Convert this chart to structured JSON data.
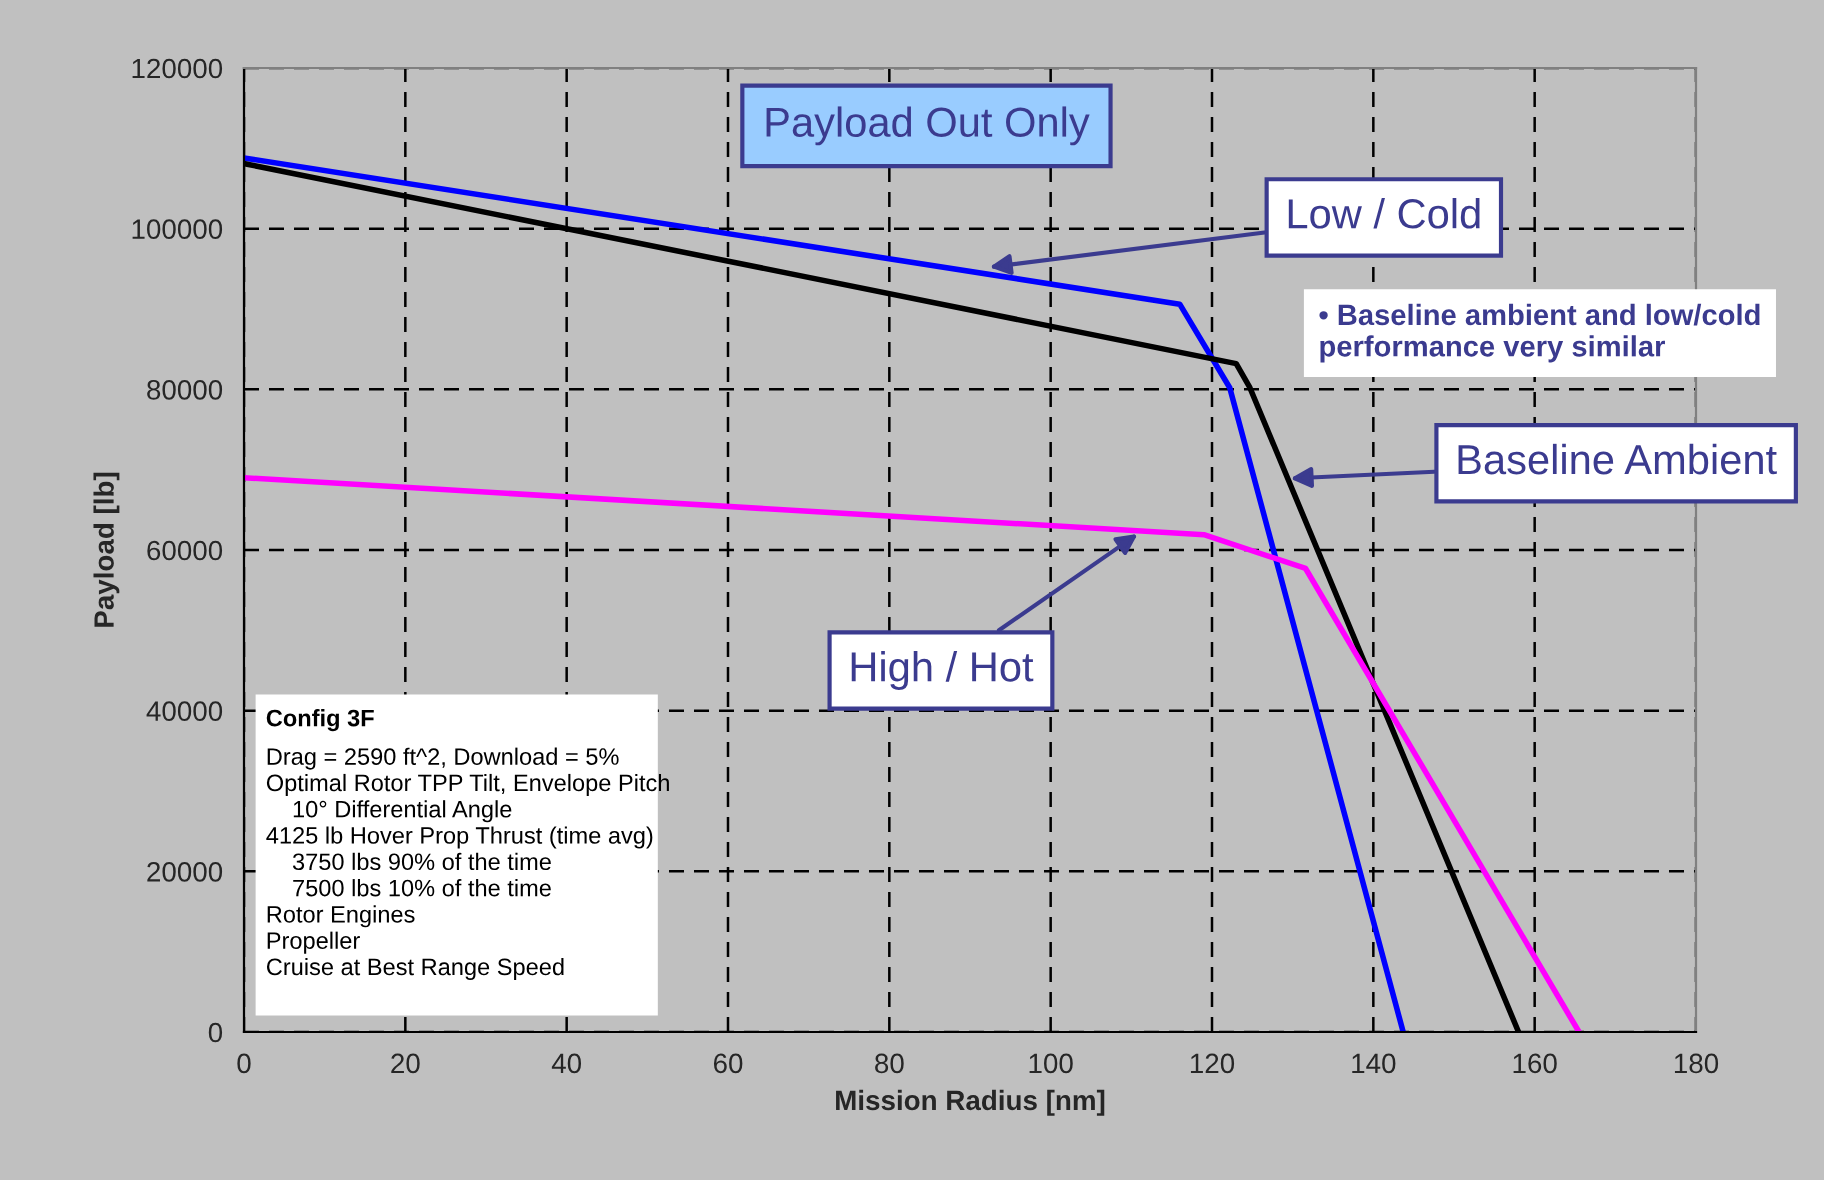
{
  "chart_data": {
    "type": "line",
    "xlabel": "Mission Radius [nm]",
    "ylabel": "Payload [lb]",
    "series": [
      {
        "color": "#0000ff",
        "x": [
          0,
          116,
          122.2,
          143.7
        ],
        "values": [
          108800,
          90600,
          80200,
          0
        ]
      },
      {
        "color": "#000000",
        "x": [
          0,
          123,
          124.7,
          158
        ],
        "values": [
          108100,
          83200,
          80200,
          0
        ]
      },
      {
        "color": "#ff00ff",
        "x": [
          0,
          119,
          131.6,
          165.5
        ],
        "values": [
          69000,
          61900,
          57700,
          0
        ]
      }
    ],
    "xlim": [
      0,
      180
    ],
    "xticks": [
      0,
      20,
      40,
      60,
      80,
      100,
      120,
      140,
      160,
      180
    ],
    "ylim": [
      0,
      120000
    ],
    "yticks": [
      0,
      20000,
      40000,
      60000,
      80000,
      100000,
      120000
    ],
    "grid": true,
    "marker": "none",
    "line_style": "solid",
    "annotations": [
      "Payload Out Only",
      {
        "text": "Low / Cold",
        "x": 92.4,
        "y": 95200
      },
      "• Baseline ambient and low/cold performance very similar",
      {
        "text": "Baseline Ambient",
        "x": 129.7,
        "y": 68900
      },
      {
        "text": "High / Hot",
        "x": 110.8,
        "y": 62000
      },
      "Config 3F",
      "Drag = 2590 ft^2, Download = 5%\nOptimal Rotor TPP Tilt, Envelope Pitch\n    10° Differential Angle\n4125 lb Hover Prop Thrust (time avg)\n    3750 lbs 90% of the time\n    7500 lbs 10% of the time\nRotor Engines\nPropeller\nCruise at Best Range Speed"
    ]
  }
}
